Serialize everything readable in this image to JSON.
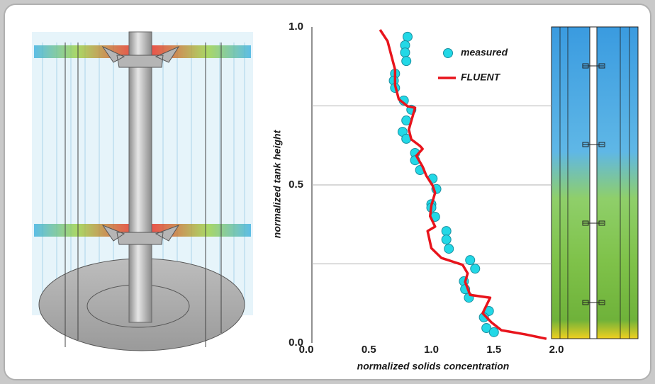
{
  "chart_data": {
    "type": "line",
    "xlabel": "normalized solids concentration",
    "ylabel": "normalized tank height",
    "xlim": [
      0,
      2
    ],
    "ylim": [
      0,
      1
    ],
    "xticks": [
      {
        "value": 0,
        "label": "0.0"
      },
      0.5,
      {
        "value": 1,
        "label": "1.0"
      },
      1.5,
      {
        "value": 2,
        "label": "2.0"
      }
    ],
    "yticks": [
      {
        "value": 0,
        "label": "0.0"
      },
      0.5,
      {
        "value": 1,
        "label": "1.0"
      }
    ],
    "ygrid": [
      0.25,
      0.5,
      0.75
    ],
    "grid": true,
    "legend": "upper right",
    "series": [
      {
        "name": "measured",
        "color": "#22d8e6",
        "style": "marker",
        "x": [
          0.81,
          0.79,
          0.79,
          0.8,
          0.71,
          0.7,
          0.71,
          0.78,
          0.84,
          0.8,
          0.77,
          0.8,
          0.87,
          0.87,
          0.91,
          1.01,
          1.04,
          1.0,
          1.0,
          1.03,
          1.12,
          1.12,
          1.14,
          1.31,
          1.35,
          1.26,
          1.27,
          1.3,
          1.46,
          1.42,
          1.44,
          1.5
        ],
        "values": [
          0.969,
          0.942,
          0.919,
          0.892,
          0.852,
          0.83,
          0.807,
          0.767,
          0.738,
          0.704,
          0.668,
          0.646,
          0.601,
          0.578,
          0.547,
          0.52,
          0.487,
          0.439,
          0.428,
          0.399,
          0.354,
          0.327,
          0.298,
          0.262,
          0.235,
          0.195,
          0.17,
          0.143,
          0.101,
          0.081,
          0.047,
          0.034
        ]
      },
      {
        "name": "FLUENT",
        "color": "#e8141c",
        "style": "line",
        "x": [
          0.59,
          0.65,
          0.68,
          0.71,
          0.71,
          0.74,
          0.81,
          0.87,
          0.82,
          0.84,
          0.91,
          0.93,
          0.88,
          0.93,
          0.96,
          1.01,
          1.03,
          1.0,
          0.99,
          1.03,
          0.97,
          1.0,
          1.08,
          1.25,
          1.29,
          1.27,
          1.31,
          1.47,
          1.41,
          1.48,
          1.56,
          1.75,
          1.92
        ],
        "values": [
          0.991,
          0.955,
          0.91,
          0.865,
          0.816,
          0.771,
          0.749,
          0.744,
          0.675,
          0.644,
          0.623,
          0.614,
          0.592,
          0.558,
          0.529,
          0.498,
          0.475,
          0.435,
          0.401,
          0.368,
          0.354,
          0.3,
          0.269,
          0.247,
          0.22,
          0.193,
          0.152,
          0.143,
          0.094,
          0.065,
          0.04,
          0.027,
          0.013
        ]
      }
    ]
  }
}
